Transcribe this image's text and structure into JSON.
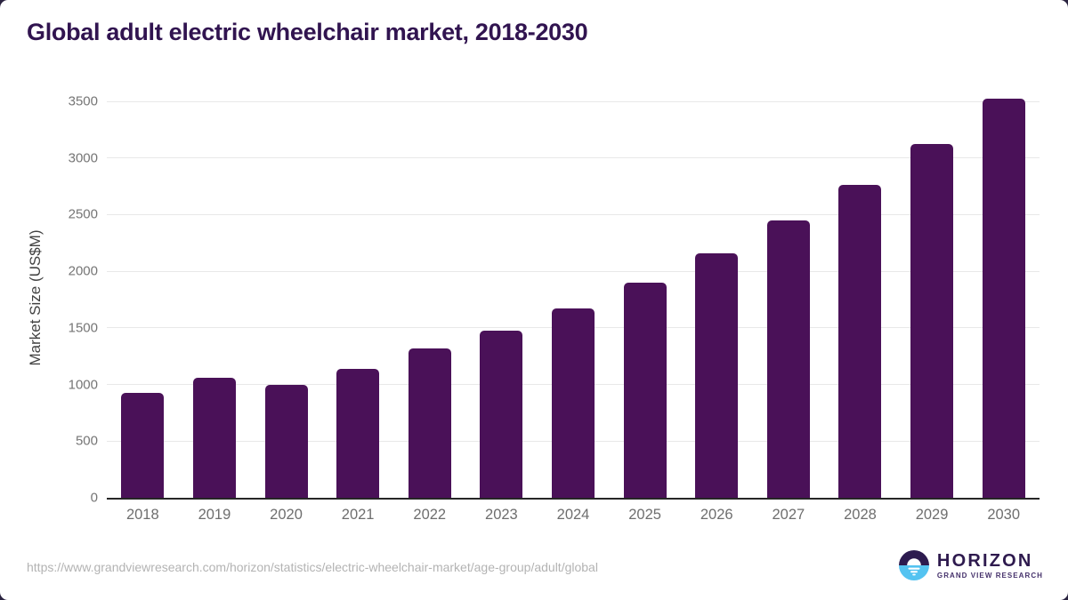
{
  "chart_data": {
    "type": "bar",
    "title": "Global adult electric wheelchair market, 2018-2030",
    "xlabel": "",
    "ylabel": "Market Size (US$M)",
    "categories": [
      "2018",
      "2019",
      "2020",
      "2021",
      "2022",
      "2023",
      "2024",
      "2025",
      "2026",
      "2027",
      "2028",
      "2029",
      "2030"
    ],
    "values": [
      925,
      1060,
      1000,
      1140,
      1315,
      1475,
      1670,
      1900,
      2155,
      2445,
      2760,
      3120,
      3520
    ],
    "ylim": [
      0,
      3500
    ],
    "yticks": [
      0,
      500,
      1000,
      1500,
      2000,
      2500,
      3000,
      3500
    ],
    "grid": true,
    "legend": false,
    "bar_color": "#4a1158"
  },
  "colors": {
    "title": "#311450",
    "bar": "#4a1158",
    "axis_line": "#262626",
    "gridline": "#e8e8e8",
    "tick_text": "#757575",
    "logo_dark": "#2d1b4f",
    "logo_blue": "#54c3f1"
  },
  "footer": {
    "source_url": "https://www.grandviewresearch.com/horizon/statistics/electric-wheelchair-market/age-group/adult/global",
    "logo": {
      "brand": "HORIZON",
      "sub_brand": "GRAND VIEW RESEARCH"
    }
  }
}
